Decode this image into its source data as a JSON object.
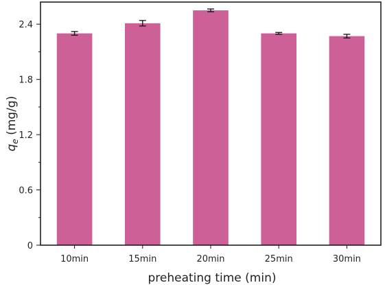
{
  "chart_data": {
    "type": "bar",
    "title": "",
    "xlabel": "preheating time (min)",
    "ylabel_symbol": "q",
    "ylabel_subscript": "e",
    "ylabel_unit": " (mg/g)",
    "categories": [
      "10min",
      "15min",
      "20min",
      "25min",
      "30min"
    ],
    "values": [
      2.3,
      2.41,
      2.55,
      2.3,
      2.27
    ],
    "errors": [
      0.02,
      0.03,
      0.015,
      0.01,
      0.02
    ],
    "ylim": [
      0,
      2.64
    ],
    "yticks": [
      0,
      0.6,
      1.2,
      1.8,
      2.4
    ],
    "ytick_labels": [
      "0",
      "0.6",
      "1.2",
      "1.8",
      "2.4"
    ],
    "grid": false,
    "bar_color": "#cd6096",
    "error_color": "#111111"
  }
}
